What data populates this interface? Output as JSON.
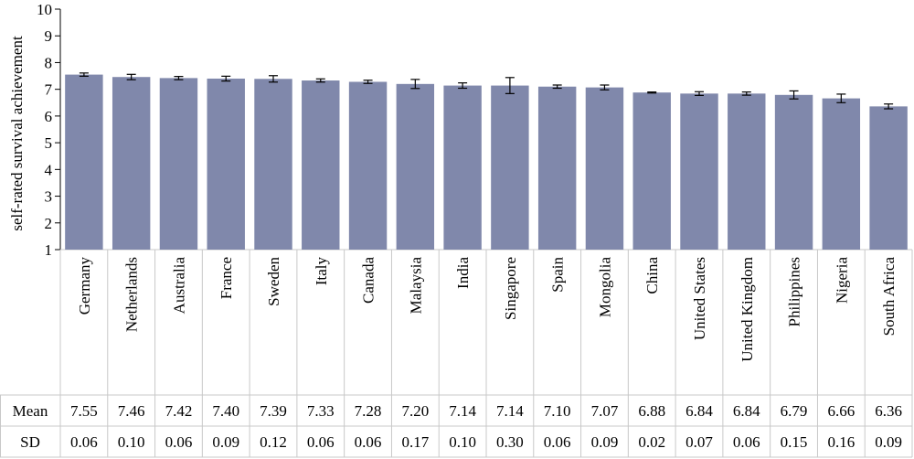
{
  "chart_data": {
    "type": "bar",
    "ylabel": "self-rated survival achievement",
    "ylim": [
      1,
      10
    ],
    "yticks": [
      1,
      2,
      3,
      4,
      5,
      6,
      7,
      8,
      9,
      10
    ],
    "grid": false,
    "bar_color": "#8088ab",
    "error_bar_color": "#000000",
    "table_line_color": "#c8c8c8",
    "categories": [
      "Germany",
      "Netherlands",
      "Australia",
      "France",
      "Sweden",
      "Italy",
      "Canada",
      "Malaysia",
      "India",
      "Singapore",
      "Spain",
      "Mongolia",
      "China",
      "United States",
      "United Kingdom",
      "Philippines",
      "Nigeria",
      "South Africa"
    ],
    "values": [
      7.55,
      7.46,
      7.42,
      7.4,
      7.39,
      7.33,
      7.28,
      7.2,
      7.14,
      7.14,
      7.1,
      7.07,
      6.88,
      6.84,
      6.84,
      6.79,
      6.66,
      6.36
    ],
    "errors": [
      0.06,
      0.1,
      0.06,
      0.09,
      0.12,
      0.06,
      0.06,
      0.17,
      0.1,
      0.3,
      0.06,
      0.09,
      0.02,
      0.07,
      0.06,
      0.15,
      0.16,
      0.09
    ],
    "table": {
      "rows": [
        {
          "label": "Mean",
          "values": [
            "7.55",
            "7.46",
            "7.42",
            "7.40",
            "7.39",
            "7.33",
            "7.28",
            "7.20",
            "7.14",
            "7.14",
            "7.10",
            "7.07",
            "6.88",
            "6.84",
            "6.84",
            "6.79",
            "6.66",
            "6.36"
          ]
        },
        {
          "label": "SD",
          "values": [
            "0.06",
            "0.10",
            "0.06",
            "0.09",
            "0.12",
            "0.06",
            "0.06",
            "0.17",
            "0.10",
            "0.30",
            "0.06",
            "0.09",
            "0.02",
            "0.07",
            "0.06",
            "0.15",
            "0.16",
            "0.09"
          ]
        }
      ]
    }
  }
}
